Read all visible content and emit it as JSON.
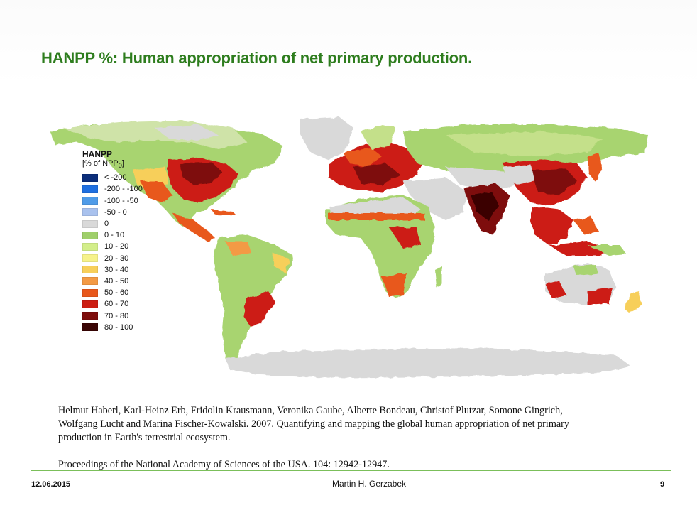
{
  "slide": {
    "title": "HANPP %: Human appropriation of net primary production.",
    "citation_authors": "Helmut Haberl, Karl-Heinz Erb, Fridolin Krausmann, Veronika Gaube, Alberte Bondeau, Christof Plutzar, Somone Gingrich, Wolfgang Lucht and Marina Fischer-Kowalski. 2007. Quantifying and mapping the global human appropriation of net primary production in Earth's terrestrial ecosystem.",
    "citation_journal": "Proceedings of the National Academy of Sciences of the USA. 104: 12942-12947.",
    "footer": {
      "date": "12.06.2015",
      "author": "Martin H. Gerzabek",
      "page": "9"
    }
  },
  "legend": {
    "title": "HANPP",
    "subtitle_pre": "[% of NPP",
    "subtitle_sub": "0",
    "subtitle_post": "]",
    "items": [
      {
        "label": "< -200",
        "color": "#0b2d7a"
      },
      {
        "label": "-200 - -100",
        "color": "#1f6fe0"
      },
      {
        "label": "-100 - -50",
        "color": "#4f9be8"
      },
      {
        "label": "-50 - 0",
        "color": "#a9c2ee"
      },
      {
        "label": "0",
        "color": "#d9d9d9"
      },
      {
        "label": "0 - 10",
        "color": "#9fcf6a"
      },
      {
        "label": "10 - 20",
        "color": "#d3ee8a"
      },
      {
        "label": "20 - 30",
        "color": "#f6f28a"
      },
      {
        "label": "30 - 40",
        "color": "#f7cf5a"
      },
      {
        "label": "40 - 50",
        "color": "#f39a45"
      },
      {
        "label": "50 - 60",
        "color": "#e8581c"
      },
      {
        "label": "60 - 70",
        "color": "#cc1d12"
      },
      {
        "label": "70 - 80",
        "color": "#7e0d0b"
      },
      {
        "label": "80 - 100",
        "color": "#3a0504"
      }
    ]
  },
  "colors": {
    "title": "#2e7d1e",
    "rule": "#7bbf5a",
    "ocean": "#ffffff"
  }
}
